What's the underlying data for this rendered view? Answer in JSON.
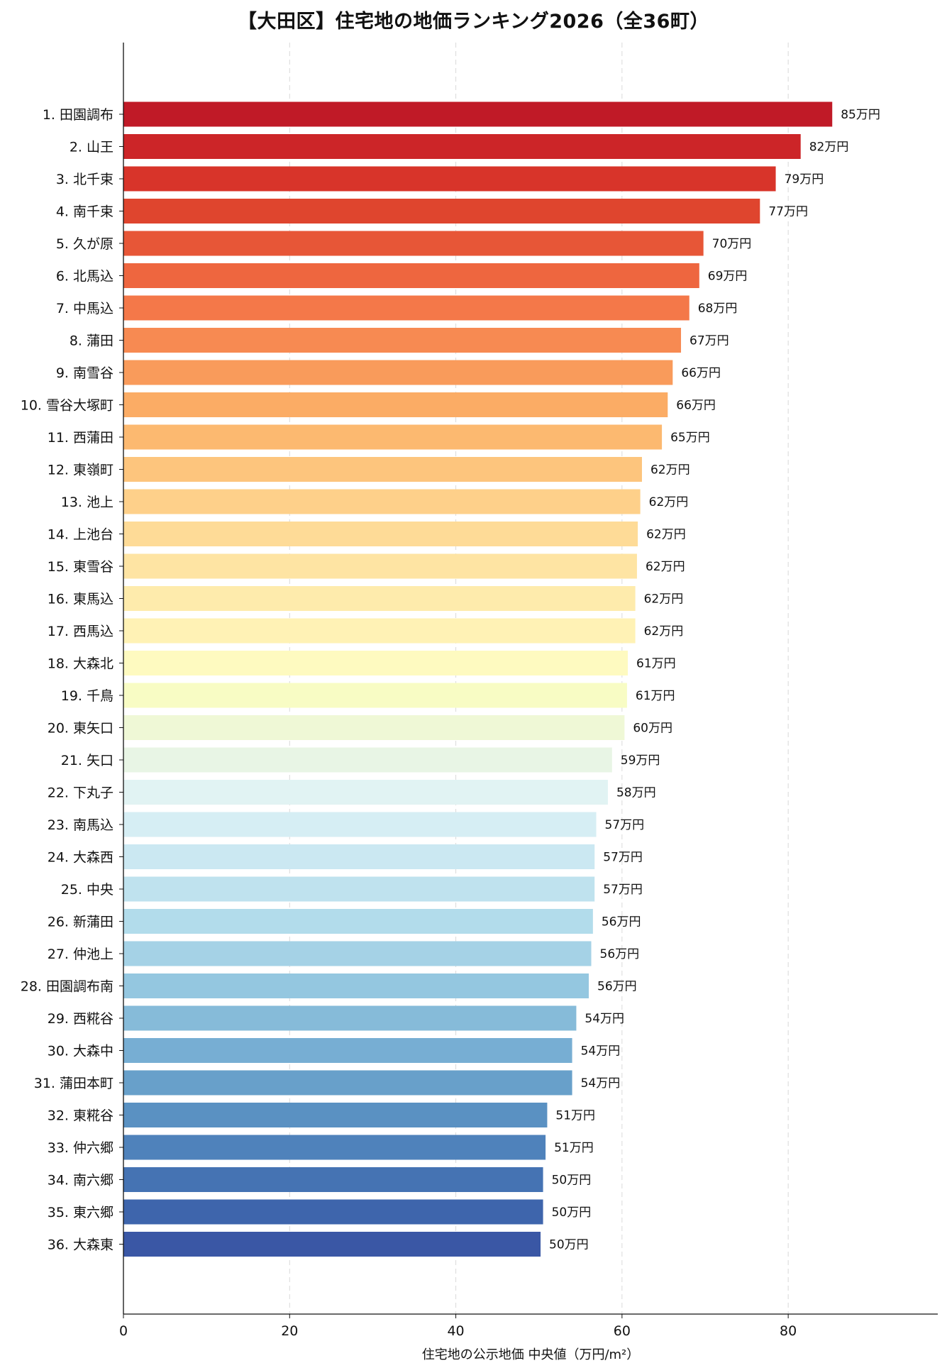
{
  "chart_data": {
    "type": "bar",
    "orientation": "horizontal",
    "title": "【大田区】住宅地の地価ランキング2026（全36町）",
    "xlabel": "住宅地の公示地価 中央値（万円/m²）",
    "ylabel": "",
    "xlim": [
      0,
      98
    ],
    "xticks": [
      0,
      20,
      40,
      60,
      80
    ],
    "grid": "vertical dashed",
    "value_suffix": "万円",
    "categories": [
      "1. 田園調布",
      "2. 山王",
      "3. 北千束",
      "4. 南千束",
      "5. 久が原",
      "6. 北馬込",
      "7. 中馬込",
      "8. 蒲田",
      "9. 南雪谷",
      "10. 雪谷大塚町",
      "11. 西蒲田",
      "12. 東嶺町",
      "13. 池上",
      "14. 上池台",
      "15. 東雪谷",
      "16. 東馬込",
      "17. 西馬込",
      "18. 大森北",
      "19. 千鳥",
      "20. 東矢口",
      "21. 矢口",
      "22. 下丸子",
      "23. 南馬込",
      "24. 大森西",
      "25. 中央",
      "26. 新蒲田",
      "27. 仲池上",
      "28. 田園調布南",
      "29. 西糀谷",
      "30. 大森中",
      "31. 蒲田本町",
      "32. 東糀谷",
      "33. 仲六郷",
      "34. 南六郷",
      "35. 東六郷",
      "36. 大森東"
    ],
    "values": [
      85.3,
      81.5,
      78.5,
      76.6,
      69.8,
      69.3,
      68.1,
      67.1,
      66.1,
      65.5,
      64.8,
      62.4,
      62.2,
      61.9,
      61.8,
      61.6,
      61.6,
      60.7,
      60.6,
      60.3,
      58.8,
      58.3,
      56.9,
      56.7,
      56.7,
      56.5,
      56.3,
      56.0,
      54.5,
      54.0,
      54.0,
      51.0,
      50.8,
      50.5,
      50.5,
      50.2
    ],
    "value_labels": [
      "85万円",
      "82万円",
      "79万円",
      "77万円",
      "70万円",
      "69万円",
      "68万円",
      "67万円",
      "66万円",
      "66万円",
      "65万円",
      "62万円",
      "62万円",
      "62万円",
      "62万円",
      "62万円",
      "62万円",
      "61万円",
      "61万円",
      "60万円",
      "59万円",
      "58万円",
      "57万円",
      "57万円",
      "57万円",
      "56万円",
      "56万円",
      "56万円",
      "54万円",
      "54万円",
      "54万円",
      "51万円",
      "51万円",
      "50万円",
      "50万円",
      "50万円"
    ],
    "colors": [
      "#c01a27",
      "#cc2528",
      "#d8342a",
      "#df452e",
      "#e75637",
      "#ee663f",
      "#f47849",
      "#f78a52",
      "#f99b5b",
      "#fbac65",
      "#fcb970",
      "#fdc57d",
      "#fed08a",
      "#fedb97",
      "#fee4a3",
      "#feebac",
      "#fff2b5",
      "#fefac0",
      "#f8fcc4",
      "#eff8d6",
      "#e8f5e5",
      "#e1f3f3",
      "#d6eef4",
      "#cbe8f2",
      "#bfe2ee",
      "#b2dceb",
      "#a5d2e6",
      "#94c7e0",
      "#86bbd9",
      "#77aed3",
      "#68a0ca",
      "#5a91c2",
      "#4f82bb",
      "#4573b3",
      "#3e65ac",
      "#3a57a5"
    ]
  }
}
